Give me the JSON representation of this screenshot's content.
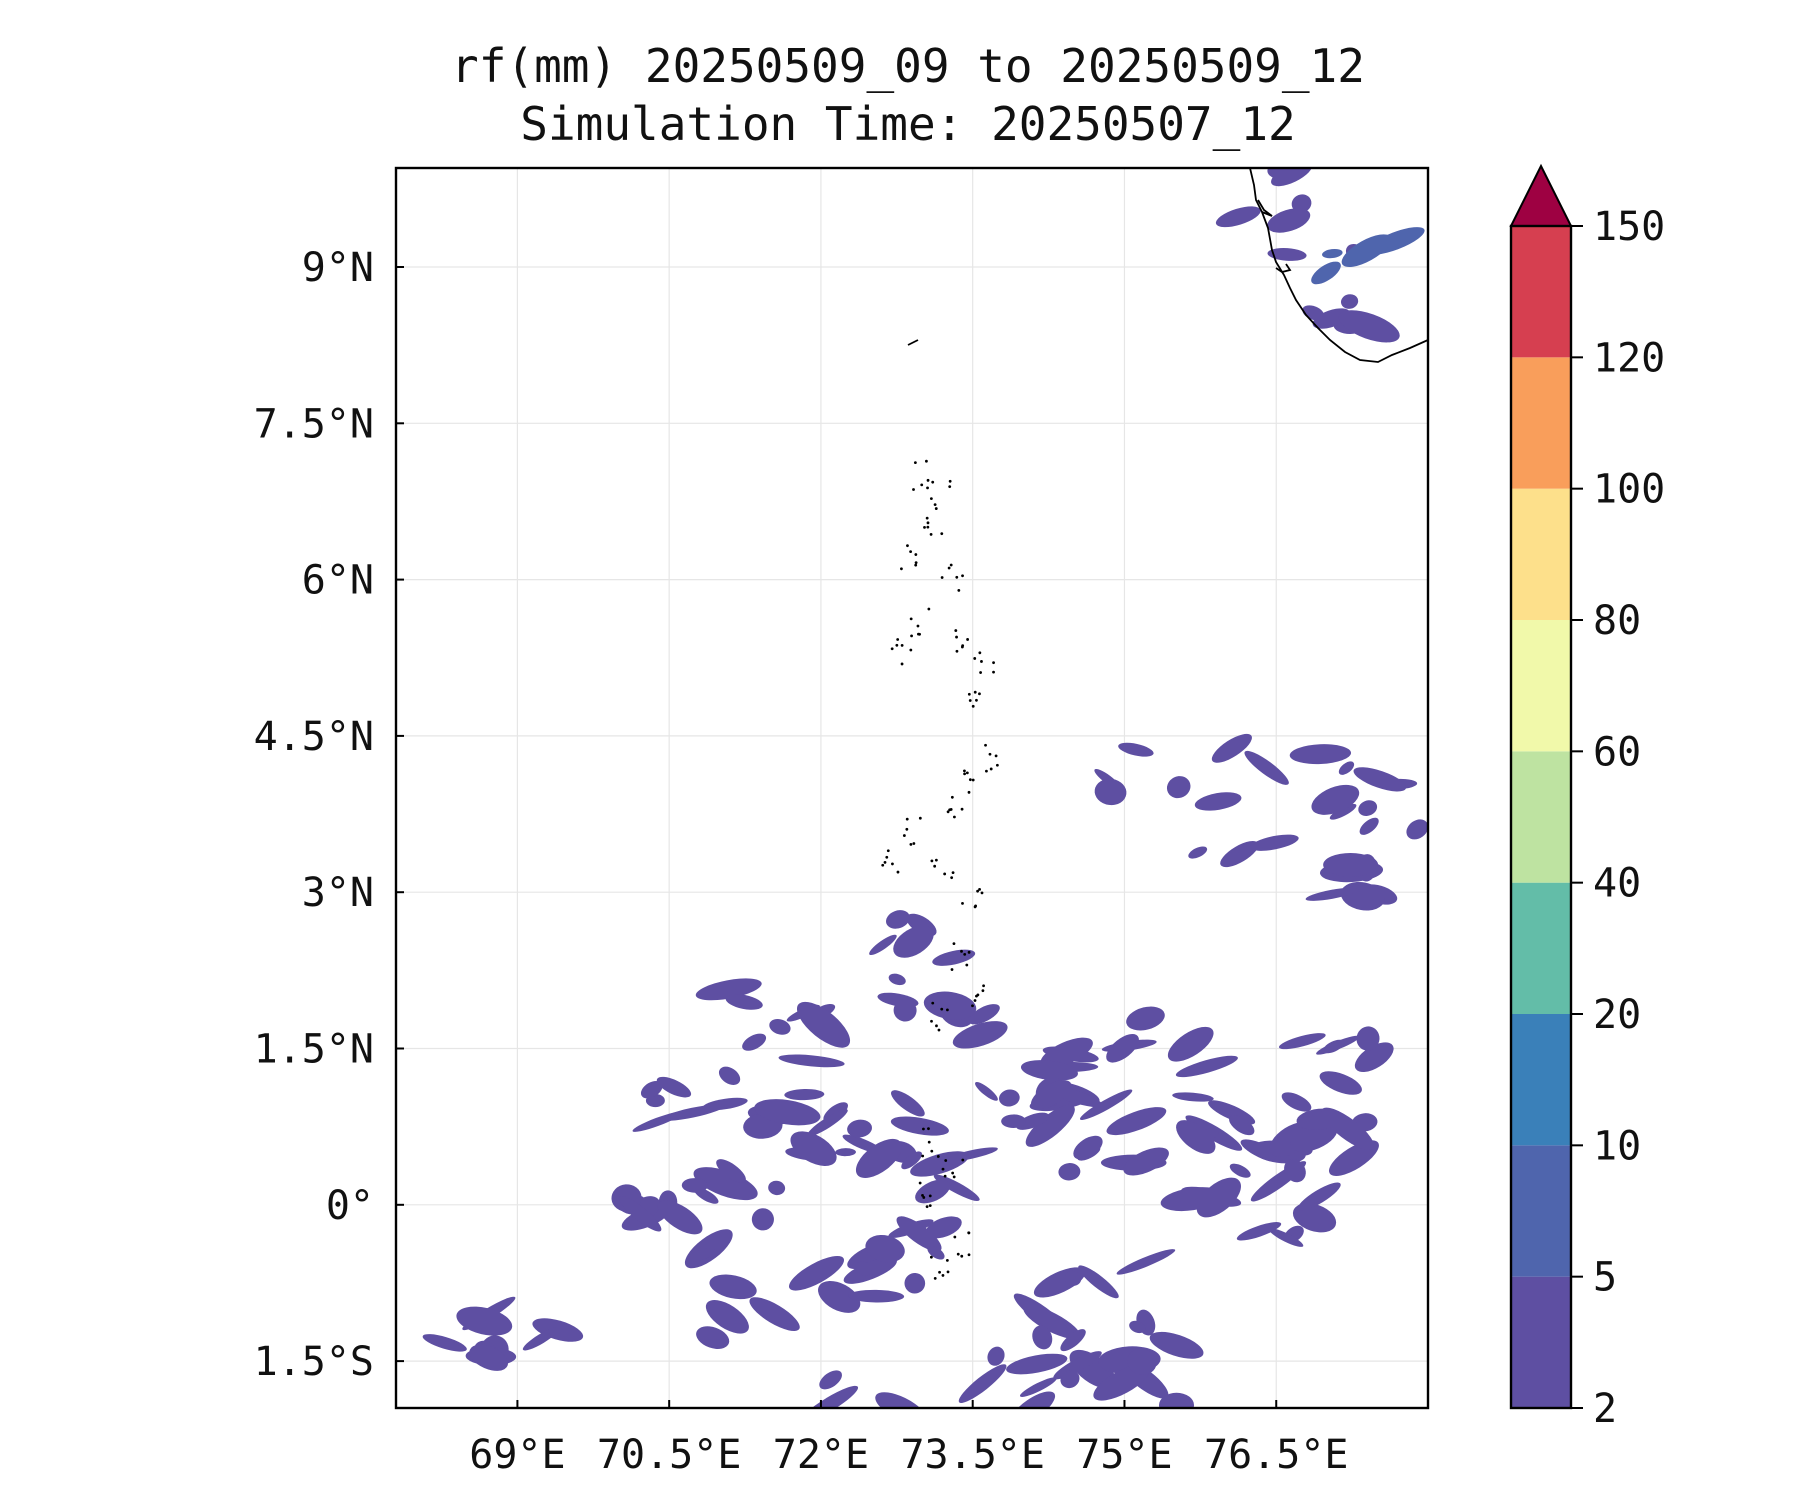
{
  "title": {
    "line1": "rf(mm) 20250509_09 to 20250509_12",
    "line2": "Simulation Time: 20250507_12"
  },
  "map": {
    "lon_range": [
      67.8,
      78.0
    ],
    "lat_range": [
      -1.95,
      9.95
    ],
    "x_ticks": [
      {
        "value": 69.0,
        "label": "69°E"
      },
      {
        "value": 70.5,
        "label": "70.5°E"
      },
      {
        "value": 72.0,
        "label": "72°E"
      },
      {
        "value": 73.5,
        "label": "73.5°E"
      },
      {
        "value": 75.0,
        "label": "75°E"
      },
      {
        "value": 76.5,
        "label": "76.5°E"
      }
    ],
    "y_ticks": [
      {
        "value": 9.0,
        "label": "9°N"
      },
      {
        "value": 7.5,
        "label": "7.5°N"
      },
      {
        "value": 6.0,
        "label": "6°N"
      },
      {
        "value": 4.5,
        "label": "4.5°N"
      },
      {
        "value": 3.0,
        "label": "3°N"
      },
      {
        "value": 1.5,
        "label": "1.5°N"
      },
      {
        "value": 0.0,
        "label": "0°"
      },
      {
        "value": -1.5,
        "label": "1.5°S"
      }
    ],
    "gridlines": true,
    "coastline_color": "#000000",
    "rain_patches": [
      {
        "lon": 76.5,
        "lat": 9.7,
        "level": 0
      },
      {
        "lon": 76.9,
        "lat": 9.4,
        "level": 0
      },
      {
        "lon": 77.3,
        "lat": 9.1,
        "level": 1
      },
      {
        "lon": 77.1,
        "lat": 8.7,
        "level": 0
      },
      {
        "lon": 76.5,
        "lat": 4.3,
        "level": 0
      },
      {
        "lon": 76.9,
        "lat": 4.0,
        "level": 0
      },
      {
        "lon": 77.6,
        "lat": 3.8,
        "level": 0
      },
      {
        "lon": 76.1,
        "lat": 3.6,
        "level": 0
      },
      {
        "lon": 77.1,
        "lat": 3.2,
        "level": 0
      },
      {
        "lon": 75.1,
        "lat": 4.1,
        "level": 0
      },
      {
        "lon": 72.7,
        "lat": 2.5,
        "level": 0
      },
      {
        "lon": 73.0,
        "lat": 2.1,
        "level": 0
      },
      {
        "lon": 73.2,
        "lat": 1.7,
        "level": 0
      },
      {
        "lon": 71.2,
        "lat": 1.0,
        "level": 0
      },
      {
        "lon": 71.8,
        "lat": 0.8,
        "level": 0
      },
      {
        "lon": 72.1,
        "lat": 0.5,
        "level": 0
      },
      {
        "lon": 71.5,
        "lat": 0.4,
        "level": 0
      },
      {
        "lon": 70.7,
        "lat": 0.9,
        "level": 0
      },
      {
        "lon": 74.5,
        "lat": 1.3,
        "level": 0
      },
      {
        "lon": 75.4,
        "lat": 1.5,
        "level": 0
      },
      {
        "lon": 74.0,
        "lat": 1.1,
        "level": 0
      },
      {
        "lon": 74.7,
        "lat": 0.9,
        "level": 0
      },
      {
        "lon": 75.7,
        "lat": 0.8,
        "level": 0
      },
      {
        "lon": 76.3,
        "lat": 0.7,
        "level": 0
      },
      {
        "lon": 74.2,
        "lat": 0.6,
        "level": 0
      },
      {
        "lon": 75.0,
        "lat": 0.6,
        "level": 0
      },
      {
        "lon": 75.6,
        "lat": 0.2,
        "level": 0
      },
      {
        "lon": 76.4,
        "lat": 0.5,
        "level": 0
      },
      {
        "lon": 77.2,
        "lat": 1.4,
        "level": 0
      },
      {
        "lon": 77.0,
        "lat": 0.6,
        "level": 0
      },
      {
        "lon": 73.1,
        "lat": 0.3,
        "level": 0
      },
      {
        "lon": 72.6,
        "lat": 0.7,
        "level": 0
      },
      {
        "lon": 70.5,
        "lat": -0.1,
        "level": 0
      },
      {
        "lon": 71.0,
        "lat": 0.1,
        "level": 0
      },
      {
        "lon": 72.8,
        "lat": -0.5,
        "level": 0
      },
      {
        "lon": 72.2,
        "lat": -0.7,
        "level": 0
      },
      {
        "lon": 74.8,
        "lat": -0.7,
        "level": 0
      },
      {
        "lon": 74.4,
        "lat": -1.0,
        "level": 0
      },
      {
        "lon": 74.9,
        "lat": -1.4,
        "level": 0
      },
      {
        "lon": 74.1,
        "lat": -1.5,
        "level": 0
      },
      {
        "lon": 75.4,
        "lat": -1.5,
        "level": 0
      },
      {
        "lon": 75.6,
        "lat": -1.9,
        "level": 0
      },
      {
        "lon": 73.8,
        "lat": -1.9,
        "level": 0
      },
      {
        "lon": 72.4,
        "lat": -1.9,
        "level": 0
      },
      {
        "lon": 69.0,
        "lat": -1.3,
        "level": 0
      },
      {
        "lon": 68.3,
        "lat": -1.4,
        "level": 0
      },
      {
        "lon": 71.3,
        "lat": -1.1,
        "level": 0
      },
      {
        "lon": 70.7,
        "lat": -0.7,
        "level": 0
      },
      {
        "lon": 76.5,
        "lat": -0.1,
        "level": 0
      },
      {
        "lon": 71.5,
        "lat": 1.8,
        "level": 0
      },
      {
        "lon": 72.3,
        "lat": 1.6,
        "level": 0
      }
    ]
  },
  "colorbar": {
    "ticks": [
      "2",
      "5",
      "10",
      "20",
      "40",
      "60",
      "80",
      "100",
      "120",
      "150"
    ],
    "colors": [
      "#5e4fa2",
      "#4f65ad",
      "#3a80b9",
      "#63bda8",
      "#bee3a1",
      "#f1f9aa",
      "#fde08b",
      "#f99e5b",
      "#d63f50"
    ],
    "extend_color": "#9e0142",
    "extend": "max"
  }
}
